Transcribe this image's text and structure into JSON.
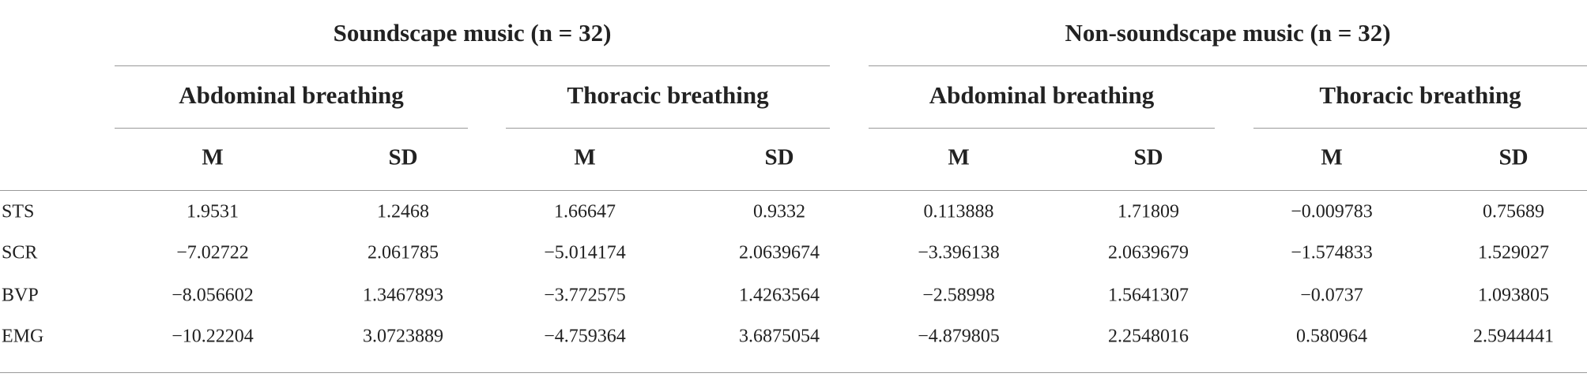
{
  "header": {
    "groups": [
      {
        "title": "Soundscape music (n = 32)",
        "subgroups": [
          "Abdominal breathing",
          "Thoracic breathing"
        ]
      },
      {
        "title": "Non-soundscape music (n = 32)",
        "subgroups": [
          "Abdominal breathing",
          "Thoracic breathing"
        ]
      }
    ],
    "columns": [
      "M",
      "SD",
      "M",
      "SD",
      "M",
      "SD",
      "M",
      "SD"
    ]
  },
  "rows": [
    {
      "label": "STS",
      "values": [
        "1.9531",
        "1.2468",
        "1.66647",
        "0.9332",
        "0.113888",
        "1.71809",
        "−0.009783",
        "0.75689"
      ]
    },
    {
      "label": "SCR",
      "values": [
        "−7.02722",
        "2.061785",
        "−5.014174",
        "2.0639674",
        "−3.396138",
        "2.0639679",
        "−1.574833",
        "1.529027"
      ]
    },
    {
      "label": "BVP",
      "values": [
        "−8.056602",
        "1.3467893",
        "−3.772575",
        "1.4263564",
        "−2.58998",
        "1.5641307",
        "−0.0737",
        "1.093805"
      ]
    },
    {
      "label": "EMG",
      "values": [
        "−10.22204",
        "3.0723889",
        "−4.759364",
        "3.6875054",
        "−4.879805",
        "2.2548016",
        "0.580964",
        "2.5944441"
      ]
    }
  ]
}
